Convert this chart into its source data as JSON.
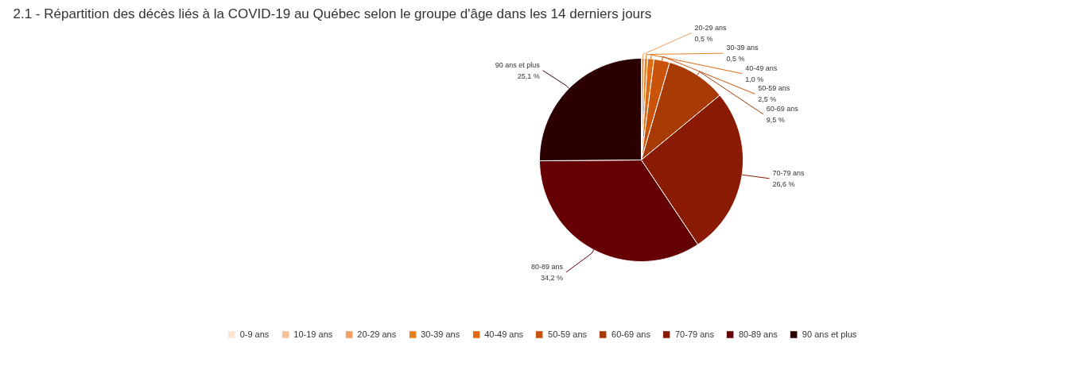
{
  "chart_data": {
    "type": "pie",
    "title": "2.1 - Répartition des décès liés à la COVID-19 au Québec selon le groupe d'âge dans les 14 derniers jours",
    "categories": [
      "0-9 ans",
      "10-19 ans",
      "20-29 ans",
      "30-39 ans",
      "40-49 ans",
      "50-59 ans",
      "60-69 ans",
      "70-79 ans",
      "80-89 ans",
      "90 ans et plus"
    ],
    "values": [
      0,
      0,
      0.5,
      0.5,
      1.0,
      2.5,
      9.5,
      26.6,
      34.2,
      25.1
    ],
    "value_labels": [
      null,
      null,
      "0,5 %",
      "0,5 %",
      "1,0 %",
      "2,5 %",
      "9,5 %",
      "26,6 %",
      "34,2 %",
      "25,1 %"
    ],
    "colors": [
      "#fbe3d6",
      "#f7c09a",
      "#f2a062",
      "#e8801f",
      "#e06a14",
      "#c9530b",
      "#a83a06",
      "#8a1a04",
      "#650004",
      "#2b0000"
    ],
    "legend": "bottom"
  }
}
